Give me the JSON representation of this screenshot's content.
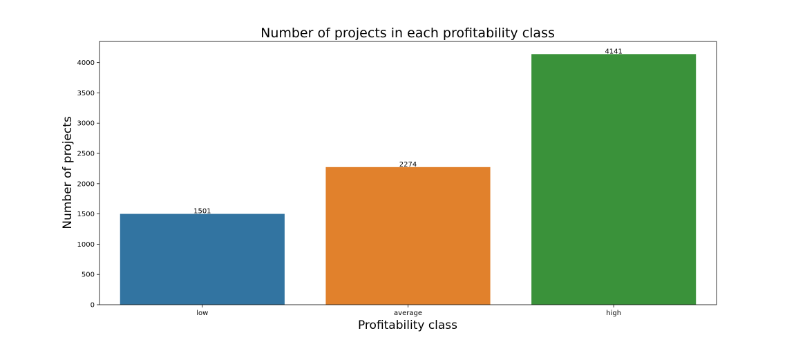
{
  "chart_data": {
    "type": "bar",
    "title": "Number of projects in each profitability class",
    "xlabel": "Profitability class",
    "ylabel": "Number of projects",
    "categories": [
      "low",
      "average",
      "high"
    ],
    "values": [
      1501,
      2274,
      4141
    ],
    "value_labels": [
      "1501",
      "2274",
      "4141"
    ],
    "colors": [
      "#3274a1",
      "#e1812c",
      "#3a923a"
    ],
    "ylim": [
      0,
      4350
    ],
    "yticks": [
      0,
      500,
      1000,
      1500,
      2000,
      2500,
      3000,
      3500,
      4000
    ],
    "ytick_labels": [
      "0",
      "500",
      "1000",
      "1500",
      "2000",
      "2500",
      "3000",
      "3500",
      "4000"
    ],
    "grid": false,
    "legend": false
  }
}
